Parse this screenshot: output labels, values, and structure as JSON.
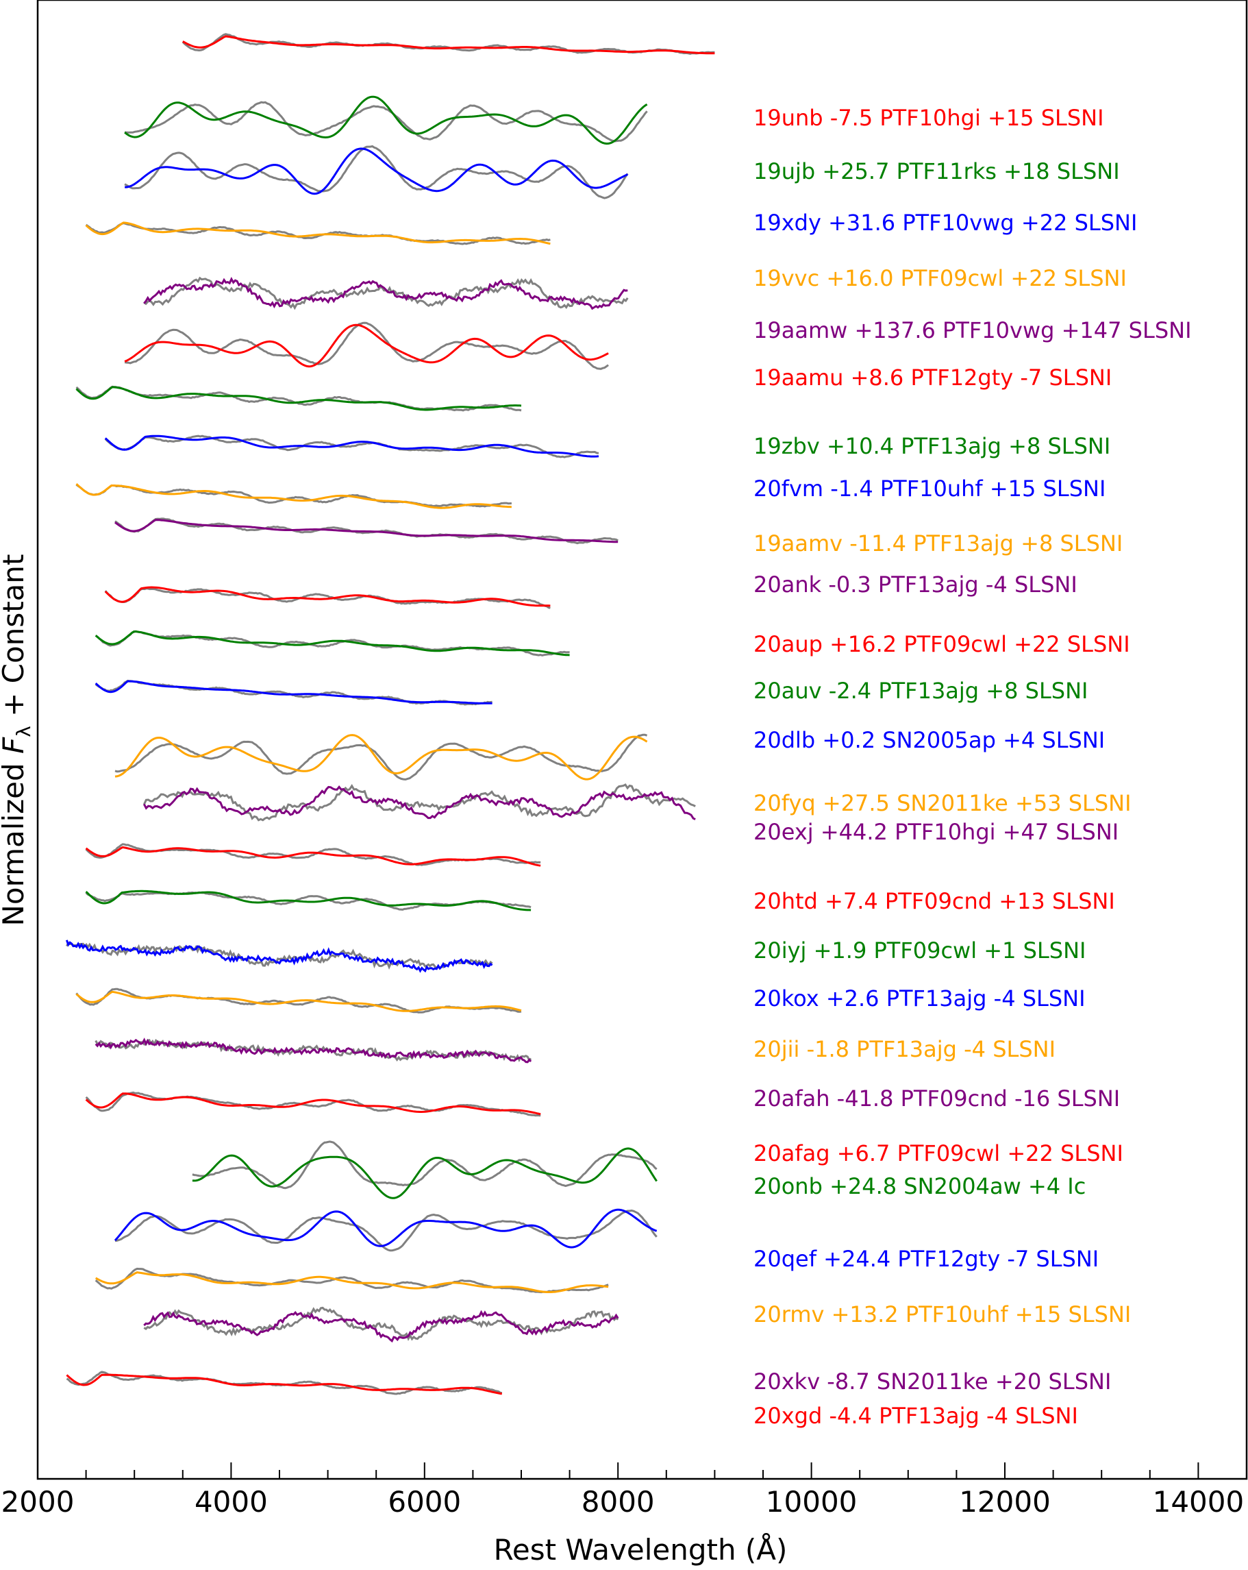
{
  "chart_data": {
    "type": "line",
    "xlabel": "Rest Wavelength (Å)",
    "ylabel_main": "Normalized ",
    "ylabel_var": "F",
    "ylabel_sub": "λ",
    "ylabel_tail": " + Constant",
    "xlim": [
      2000,
      14500
    ],
    "xticks": [
      2000,
      4000,
      6000,
      8000,
      10000,
      12000,
      14000
    ],
    "xtick_labels": [
      "2000",
      "4000",
      "6000",
      "8000",
      "10000",
      "12000",
      "14000"
    ],
    "template_color": "#808080",
    "series": [
      {
        "label": "19unb -7.5  PTF10hgi +15 SLSNI",
        "color": "#ff0000",
        "x_range": [
          3500,
          9000
        ],
        "offset": 88,
        "slope": 0.3,
        "amp": 0.05,
        "style": "smooth"
      },
      {
        "label": "19ujb +25.7  PTF11rks +18 SLSNI",
        "color": "#008000",
        "x_range": [
          2900,
          8300
        ],
        "offset": 200,
        "slope": 0.1,
        "amp": 0.45,
        "style": "wiggly"
      },
      {
        "label": "19xdy +31.6  PTF10vwg +22 SLSNI",
        "color": "#0000ff",
        "x_range": [
          2900,
          8100
        ],
        "offset": 278,
        "slope": 0.1,
        "amp": 0.5,
        "style": "wiggly"
      },
      {
        "label": "19vvc +16.0  PTF09cwl +22 SLSNI",
        "color": "#ffa500",
        "x_range": [
          2500,
          7300
        ],
        "offset": 358,
        "slope": 0.45,
        "amp": 0.1,
        "style": "smooth"
      },
      {
        "label": "19aamw +137.6  PTF10vwg +147 SLSNI",
        "color": "#800080",
        "x_range": [
          3100,
          8100
        ],
        "offset": 455,
        "slope": 0.05,
        "amp": 0.4,
        "style": "noisy"
      },
      {
        "label": "19aamu +8.6  PTF12gty -7 SLSNI",
        "color": "#ff0000",
        "x_range": [
          2900,
          7900
        ],
        "offset": 535,
        "slope": 0.0,
        "amp": 0.45,
        "style": "wiggly"
      },
      {
        "label": "19zbv +10.4  PTF13ajg +8 SLSNI",
        "color": "#008000",
        "x_range": [
          2400,
          7000
        ],
        "offset": 598,
        "slope": 0.5,
        "amp": 0.12,
        "style": "smooth"
      },
      {
        "label": "20fvm -1.4  PTF10uhf +15 SLSNI",
        "color": "#0000ff",
        "x_range": [
          2700,
          7800
        ],
        "offset": 668,
        "slope": 0.35,
        "amp": 0.15,
        "style": "smooth"
      },
      {
        "label": "19aamv -11.4  PTF13ajg +8 SLSNI",
        "color": "#ffa500",
        "x_range": [
          2400,
          6900
        ],
        "offset": 740,
        "slope": 0.5,
        "amp": 0.12,
        "style": "smooth"
      },
      {
        "label": "20ank -0.3  PTF13ajg -4 SLSNI",
        "color": "#800080",
        "x_range": [
          2800,
          8000
        ],
        "offset": 790,
        "slope": 0.5,
        "amp": 0.05,
        "style": "smooth"
      },
      {
        "label": "20aup +16.2  PTF09cwl +22 SLSNI",
        "color": "#ff0000",
        "x_range": [
          2700,
          7300
        ],
        "offset": 890,
        "slope": 0.35,
        "amp": 0.12,
        "style": "smooth"
      },
      {
        "label": "20auv -2.4  PTF13ajg +8 SLSNI",
        "color": "#008000",
        "x_range": [
          2600,
          7500
        ],
        "offset": 955,
        "slope": 0.45,
        "amp": 0.1,
        "style": "smooth"
      },
      {
        "label": "20dlb +0.2  SN2005ap +4 SLSNI",
        "color": "#0000ff",
        "x_range": [
          2600,
          6700
        ],
        "offset": 1025,
        "slope": 0.55,
        "amp": 0.05,
        "style": "smooth"
      },
      {
        "label": "20fyq +27.5  SN2011ke +53 SLSNI",
        "color": "#ffa500",
        "x_range": [
          2800,
          8300
        ],
        "offset": 1130,
        "slope": 0.05,
        "amp": 0.45,
        "style": "wiggly"
      },
      {
        "label": "20exj +44.2  PTF10hgi +47 SLSNI",
        "color": "#800080",
        "x_range": [
          3100,
          8800
        ],
        "offset": 1200,
        "slope": 0.0,
        "amp": 0.45,
        "style": "noisy"
      },
      {
        "label": "20htd +7.4  PTF09cnd +13 SLSNI",
        "color": "#ff0000",
        "x_range": [
          2500,
          7200
        ],
        "offset": 1265,
        "slope": 0.4,
        "amp": 0.15,
        "style": "smooth"
      },
      {
        "label": "20iyj +1.9  PTF09cwl +1 SLSNI",
        "color": "#008000",
        "x_range": [
          2500,
          7100
        ],
        "offset": 1330,
        "slope": 0.4,
        "amp": 0.15,
        "style": "smooth"
      },
      {
        "label": "20kox +2.6  PTF13ajg -4 SLSNI",
        "color": "#0000ff",
        "x_range": [
          2300,
          6700
        ],
        "offset": 1410,
        "slope": 0.5,
        "amp": 0.2,
        "style": "noisy"
      },
      {
        "label": "20jii -1.8  PTF13ajg -4 SLSNI",
        "color": "#ffa500",
        "x_range": [
          2400,
          7000
        ],
        "offset": 1478,
        "slope": 0.45,
        "amp": 0.12,
        "style": "smooth"
      },
      {
        "label": "20afah -41.8  PTF09cnd -16 SLSNI",
        "color": "#800080",
        "x_range": [
          2600,
          7100
        ],
        "offset": 1550,
        "slope": 0.4,
        "amp": 0.1,
        "style": "noisy"
      },
      {
        "label": "20afag +6.7  PTF09cwl +22 SLSNI",
        "color": "#ff0000",
        "x_range": [
          2500,
          7200
        ],
        "offset": 1630,
        "slope": 0.35,
        "amp": 0.15,
        "style": "smooth"
      },
      {
        "label": "20onb +24.8  SN2004aw +4 Ic",
        "color": "#008000",
        "x_range": [
          3600,
          8400
        ],
        "offset": 1738,
        "slope": -0.05,
        "amp": 0.5,
        "style": "wiggly"
      },
      {
        "label": "20qef +24.4  PTF12gty -7 SLSNI",
        "color": "#0000ff",
        "x_range": [
          2800,
          8400
        ],
        "offset": 1822,
        "slope": -0.05,
        "amp": 0.4,
        "style": "wiggly"
      },
      {
        "label": "20rmv +13.2  PTF10uhf +15 SLSNI",
        "color": "#ffa500",
        "x_range": [
          2600,
          7900
        ],
        "offset": 1890,
        "slope": 0.35,
        "amp": 0.15,
        "style": "smooth"
      },
      {
        "label": "20xkv -8.7  SN2011ke +20 SLSNI",
        "color": "#800080",
        "x_range": [
          3100,
          8000
        ],
        "offset": 1960,
        "slope": 0.0,
        "amp": 0.4,
        "style": "noisy"
      },
      {
        "label": "20xgd -4.4  PTF13ajg -4 SLSNI",
        "color": "#ff0000",
        "x_range": [
          2300,
          6800
        ],
        "offset": 2035,
        "slope": 0.45,
        "amp": 0.1,
        "style": "smooth"
      }
    ],
    "label_y": [
      172,
      250,
      325,
      406,
      482,
      551,
      651,
      713,
      793,
      853,
      940,
      1008,
      1080,
      1172,
      1214,
      1315,
      1387,
      1457,
      1531,
      1603,
      1683,
      1731,
      1837,
      1918,
      2016,
      2066
    ]
  }
}
